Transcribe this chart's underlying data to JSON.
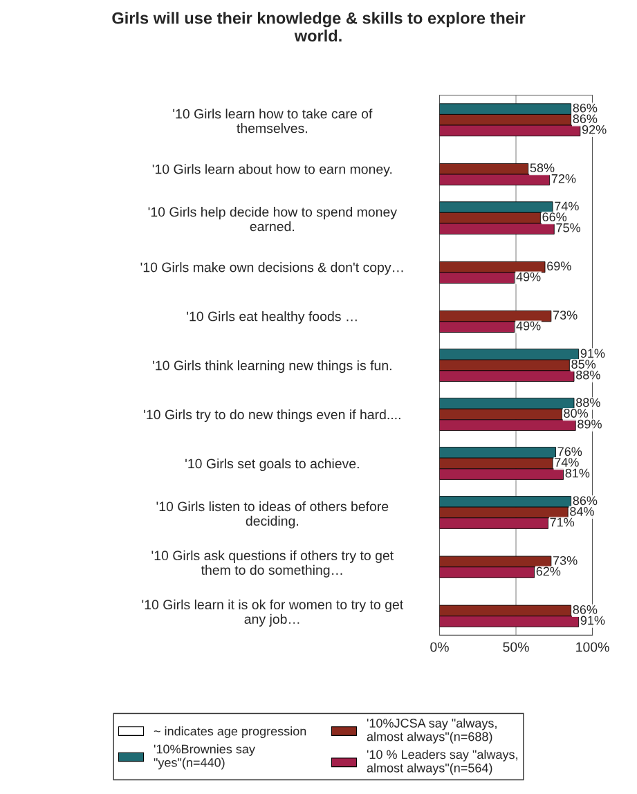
{
  "chart_data": {
    "type": "bar",
    "orientation": "horizontal",
    "title": "Girls will use their knowledge & skills to explore their\nworld.",
    "categories": [
      "'10 Girls learn how to take care of\nthemselves.",
      "'10 Girls learn about how to earn money.",
      "'10 Girls help decide how to spend money\nearned.",
      "'10 Girls make own decisions & don't copy…",
      "'10 Girls eat healthy foods …",
      "'10 Girls think learning new things is fun.",
      "'10 Girls try to do new things even if hard....",
      "'10 Girls set goals to achieve.",
      "'10 Girls listen to ideas of others before\ndeciding.",
      "'10 Girls ask questions if others try to get\nthem to do something…",
      "'10 Girls learn it is ok for women to try to get\nany job…"
    ],
    "series": [
      {
        "name": "~ indicates age progression",
        "color": "#ffffff",
        "values": [
          null,
          null,
          null,
          null,
          null,
          null,
          null,
          null,
          null,
          null,
          null
        ]
      },
      {
        "name": "'10%Brownies say\n\"yes\"(n=440)",
        "color": "#1f6b73",
        "values": [
          86,
          null,
          74,
          null,
          null,
          91,
          88,
          76,
          86,
          null,
          null
        ],
        "value_labels": [
          "86%",
          null,
          "74%",
          null,
          null,
          "91%",
          "88%",
          "76%",
          "86%",
          null,
          null
        ]
      },
      {
        "name": "'10%JCSA say \"always,\nalmost always\"(n=688)",
        "color": "#8b2a1e",
        "values": [
          86,
          58,
          66,
          69,
          73,
          85,
          80,
          74,
          84,
          73,
          86
        ],
        "value_labels": [
          "86%",
          "58%",
          "66%",
          "69%",
          "73%",
          "85%",
          "80%",
          "74%",
          "84%",
          "73%",
          "86%"
        ]
      },
      {
        "name": "'10 % Leaders say \"always,\nalmost always\"(n=564)",
        "color": "#a3204a",
        "values": [
          92,
          72,
          75,
          49,
          49,
          88,
          89,
          81,
          71,
          62,
          91
        ],
        "value_labels": [
          "92%",
          "72%",
          "75%",
          "49%",
          "49%",
          "88%",
          "89%",
          "81%",
          "71%",
          "62%",
          "91%"
        ]
      }
    ],
    "xlim": [
      0,
      100
    ],
    "xticks": [
      {
        "value": 0,
        "label": "0%"
      },
      {
        "value": 50,
        "label": "50%"
      },
      {
        "value": 100,
        "label": "100%"
      }
    ],
    "grid": "x",
    "legend": "bottom"
  }
}
